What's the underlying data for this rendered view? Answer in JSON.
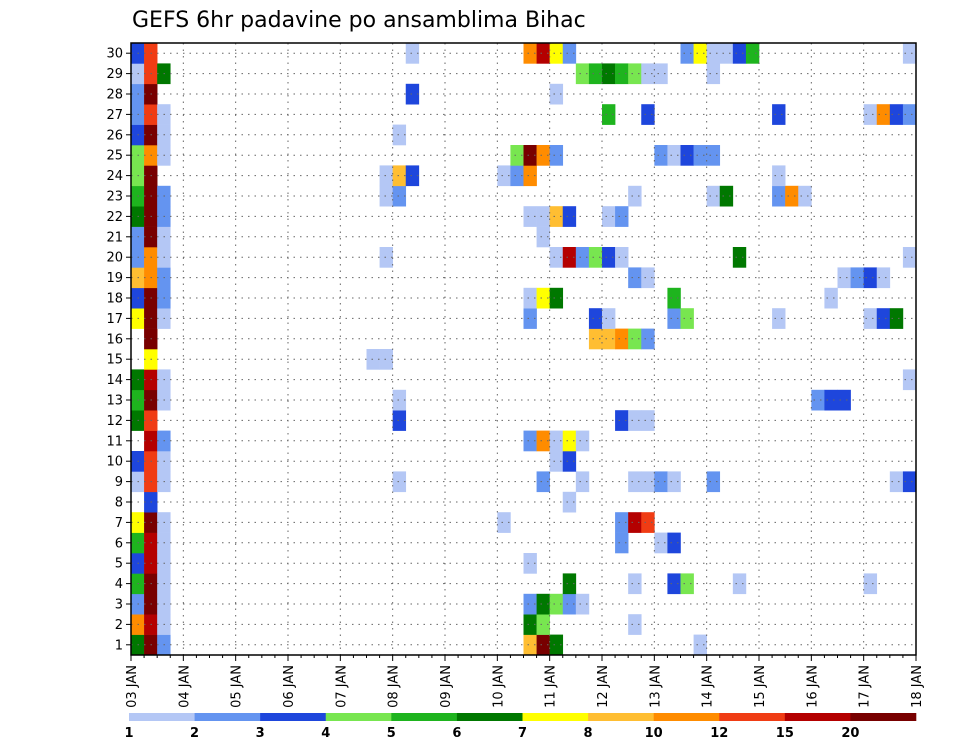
{
  "chart_data": {
    "type": "heatmap",
    "title": "GEFS 6hr padavine po ansamblima Bihac",
    "x_tick_labels": [
      "03 JAN",
      "04 JAN",
      "05 JAN",
      "06 JAN",
      "07 JAN",
      "08 JAN",
      "09 JAN",
      "10 JAN",
      "11 JAN",
      "12 JAN",
      "13 JAN",
      "14 JAN",
      "15 JAN",
      "16 JAN",
      "17 JAN",
      "18 JAN"
    ],
    "y_tick_labels": [
      "1",
      "2",
      "3",
      "4",
      "5",
      "6",
      "7",
      "8",
      "9",
      "10",
      "11",
      "12",
      "13",
      "14",
      "15",
      "16",
      "17",
      "18",
      "19",
      "20",
      "21",
      "22",
      "23",
      "24",
      "25",
      "26",
      "27",
      "28",
      "29",
      "30"
    ],
    "x_step": "6 hours per column, 4 columns per day",
    "y_members": 30,
    "grid": "dotted",
    "color_levels": [
      "1",
      "2",
      "3",
      "4",
      "5",
      "6",
      "7",
      "8",
      "10",
      "12",
      "15",
      "20"
    ],
    "colors": [
      "#b4c7f5",
      "#6494f0",
      "#1e46dc",
      "#78e650",
      "#1eb41e",
      "#007800",
      "#ffff00",
      "#ffbe32",
      "#ff8c00",
      "#f03c14",
      "#b40000",
      "#780000"
    ],
    "cells_format": "[member_row_1_to_30, column_index_from_03JAN00Z, color_index]",
    "cells": [
      [
        1,
        0,
        5
      ],
      [
        1,
        1,
        11
      ],
      [
        1,
        2,
        1
      ],
      [
        1,
        30,
        7
      ],
      [
        1,
        31,
        11
      ],
      [
        1,
        32,
        5
      ],
      [
        1,
        43,
        0
      ],
      [
        2,
        0,
        8
      ],
      [
        2,
        1,
        10
      ],
      [
        2,
        2,
        0
      ],
      [
        2,
        30,
        5
      ],
      [
        2,
        31,
        3
      ],
      [
        2,
        38,
        0
      ],
      [
        3,
        0,
        1
      ],
      [
        3,
        1,
        11
      ],
      [
        3,
        2,
        0
      ],
      [
        3,
        30,
        1
      ],
      [
        3,
        31,
        5
      ],
      [
        3,
        32,
        3
      ],
      [
        3,
        33,
        1
      ],
      [
        3,
        34,
        0
      ],
      [
        4,
        0,
        4
      ],
      [
        4,
        1,
        11
      ],
      [
        4,
        2,
        0
      ],
      [
        4,
        33,
        5
      ],
      [
        4,
        38,
        0
      ],
      [
        4,
        41,
        2
      ],
      [
        4,
        42,
        3
      ],
      [
        4,
        46,
        0
      ],
      [
        4,
        56,
        0
      ],
      [
        5,
        0,
        2
      ],
      [
        5,
        1,
        10
      ],
      [
        5,
        2,
        0
      ],
      [
        5,
        30,
        0
      ],
      [
        6,
        0,
        4
      ],
      [
        6,
        1,
        10
      ],
      [
        6,
        2,
        0
      ],
      [
        6,
        37,
        1
      ],
      [
        6,
        40,
        0
      ],
      [
        6,
        41,
        2
      ],
      [
        7,
        0,
        6
      ],
      [
        7,
        1,
        11
      ],
      [
        7,
        2,
        0
      ],
      [
        7,
        28,
        0
      ],
      [
        7,
        37,
        1
      ],
      [
        7,
        38,
        10
      ],
      [
        7,
        39,
        9
      ],
      [
        8,
        1,
        2
      ],
      [
        8,
        33,
        0
      ],
      [
        9,
        0,
        0
      ],
      [
        9,
        1,
        9
      ],
      [
        9,
        2,
        0
      ],
      [
        9,
        20,
        0
      ],
      [
        9,
        31,
        1
      ],
      [
        9,
        34,
        0
      ],
      [
        9,
        38,
        0
      ],
      [
        9,
        39,
        0
      ],
      [
        9,
        40,
        1
      ],
      [
        9,
        41,
        0
      ],
      [
        9,
        44,
        1
      ],
      [
        9,
        58,
        0
      ],
      [
        9,
        59,
        2
      ],
      [
        10,
        0,
        2
      ],
      [
        10,
        1,
        9
      ],
      [
        10,
        2,
        0
      ],
      [
        10,
        32,
        0
      ],
      [
        10,
        33,
        2
      ],
      [
        11,
        1,
        10
      ],
      [
        11,
        2,
        1
      ],
      [
        11,
        30,
        1
      ],
      [
        11,
        31,
        8
      ],
      [
        11,
        32,
        0
      ],
      [
        11,
        33,
        6
      ],
      [
        11,
        34,
        0
      ],
      [
        12,
        0,
        5
      ],
      [
        12,
        1,
        9
      ],
      [
        12,
        20,
        2
      ],
      [
        12,
        37,
        2
      ],
      [
        12,
        38,
        0
      ],
      [
        12,
        39,
        0
      ],
      [
        13,
        0,
        4
      ],
      [
        13,
        1,
        11
      ],
      [
        13,
        2,
        0
      ],
      [
        13,
        20,
        0
      ],
      [
        13,
        52,
        1
      ],
      [
        13,
        53,
        2
      ],
      [
        13,
        54,
        2
      ],
      [
        14,
        0,
        5
      ],
      [
        14,
        1,
        10
      ],
      [
        14,
        2,
        0
      ],
      [
        14,
        59,
        0
      ],
      [
        15,
        1,
        6
      ],
      [
        15,
        18,
        0
      ],
      [
        15,
        19,
        0
      ],
      [
        16,
        1,
        11
      ],
      [
        16,
        35,
        7
      ],
      [
        16,
        36,
        7
      ],
      [
        16,
        37,
        8
      ],
      [
        16,
        38,
        3
      ],
      [
        16,
        39,
        1
      ],
      [
        17,
        0,
        6
      ],
      [
        17,
        1,
        11
      ],
      [
        17,
        2,
        0
      ],
      [
        17,
        30,
        1
      ],
      [
        17,
        35,
        2
      ],
      [
        17,
        36,
        0
      ],
      [
        17,
        41,
        1
      ],
      [
        17,
        42,
        3
      ],
      [
        17,
        49,
        0
      ],
      [
        17,
        56,
        0
      ],
      [
        17,
        57,
        2
      ],
      [
        17,
        58,
        5
      ],
      [
        18,
        0,
        2
      ],
      [
        18,
        1,
        11
      ],
      [
        18,
        2,
        1
      ],
      [
        18,
        30,
        0
      ],
      [
        18,
        31,
        6
      ],
      [
        18,
        32,
        5
      ],
      [
        18,
        41,
        4
      ],
      [
        18,
        53,
        0
      ],
      [
        19,
        0,
        7
      ],
      [
        19,
        1,
        8
      ],
      [
        19,
        2,
        1
      ],
      [
        19,
        38,
        1
      ],
      [
        19,
        39,
        0
      ],
      [
        19,
        54,
        0
      ],
      [
        19,
        55,
        1
      ],
      [
        19,
        56,
        2
      ],
      [
        19,
        57,
        0
      ],
      [
        20,
        0,
        1
      ],
      [
        20,
        1,
        8
      ],
      [
        20,
        2,
        0
      ],
      [
        20,
        19,
        0
      ],
      [
        20,
        32,
        0
      ],
      [
        20,
        33,
        10
      ],
      [
        20,
        34,
        1
      ],
      [
        20,
        35,
        3
      ],
      [
        20,
        36,
        2
      ],
      [
        20,
        37,
        0
      ],
      [
        20,
        46,
        5
      ],
      [
        20,
        59,
        0
      ],
      [
        21,
        0,
        1
      ],
      [
        21,
        1,
        11
      ],
      [
        21,
        2,
        0
      ],
      [
        21,
        31,
        0
      ],
      [
        22,
        0,
        5
      ],
      [
        22,
        1,
        11
      ],
      [
        22,
        2,
        1
      ],
      [
        22,
        30,
        0
      ],
      [
        22,
        31,
        0
      ],
      [
        22,
        32,
        7
      ],
      [
        22,
        33,
        2
      ],
      [
        22,
        36,
        0
      ],
      [
        22,
        37,
        1
      ],
      [
        23,
        0,
        4
      ],
      [
        23,
        1,
        11
      ],
      [
        23,
        2,
        1
      ],
      [
        23,
        19,
        0
      ],
      [
        23,
        20,
        1
      ],
      [
        23,
        38,
        0
      ],
      [
        23,
        44,
        0
      ],
      [
        23,
        45,
        5
      ],
      [
        23,
        49,
        1
      ],
      [
        23,
        50,
        8
      ],
      [
        23,
        51,
        0
      ],
      [
        24,
        0,
        3
      ],
      [
        24,
        1,
        11
      ],
      [
        24,
        19,
        0
      ],
      [
        24,
        20,
        7
      ],
      [
        24,
        21,
        2
      ],
      [
        24,
        28,
        0
      ],
      [
        24,
        29,
        1
      ],
      [
        24,
        30,
        8
      ],
      [
        24,
        49,
        0
      ],
      [
        25,
        0,
        3
      ],
      [
        25,
        1,
        8
      ],
      [
        25,
        2,
        0
      ],
      [
        25,
        29,
        3
      ],
      [
        25,
        30,
        11
      ],
      [
        25,
        31,
        8
      ],
      [
        25,
        32,
        1
      ],
      [
        25,
        40,
        1
      ],
      [
        25,
        41,
        0
      ],
      [
        25,
        42,
        2
      ],
      [
        25,
        43,
        1
      ],
      [
        25,
        44,
        1
      ],
      [
        26,
        0,
        2
      ],
      [
        26,
        1,
        11
      ],
      [
        26,
        2,
        0
      ],
      [
        26,
        20,
        0
      ],
      [
        27,
        0,
        1
      ],
      [
        27,
        1,
        9
      ],
      [
        27,
        2,
        0
      ],
      [
        27,
        36,
        4
      ],
      [
        27,
        39,
        2
      ],
      [
        27,
        49,
        2
      ],
      [
        27,
        56,
        0
      ],
      [
        27,
        57,
        8
      ],
      [
        27,
        58,
        2
      ],
      [
        27,
        59,
        1
      ],
      [
        28,
        0,
        1
      ],
      [
        28,
        1,
        11
      ],
      [
        28,
        21,
        2
      ],
      [
        28,
        32,
        0
      ],
      [
        29,
        0,
        0
      ],
      [
        29,
        1,
        9
      ],
      [
        29,
        2,
        5
      ],
      [
        29,
        34,
        3
      ],
      [
        29,
        35,
        4
      ],
      [
        29,
        36,
        5
      ],
      [
        29,
        37,
        4
      ],
      [
        29,
        38,
        3
      ],
      [
        29,
        39,
        0
      ],
      [
        29,
        40,
        0
      ],
      [
        29,
        44,
        0
      ],
      [
        30,
        0,
        2
      ],
      [
        30,
        1,
        9
      ],
      [
        30,
        21,
        0
      ],
      [
        30,
        30,
        8
      ],
      [
        30,
        31,
        10
      ],
      [
        30,
        32,
        6
      ],
      [
        30,
        33,
        1
      ],
      [
        30,
        42,
        1
      ],
      [
        30,
        43,
        6
      ],
      [
        30,
        44,
        0
      ],
      [
        30,
        45,
        0
      ],
      [
        30,
        46,
        2
      ],
      [
        30,
        47,
        4
      ],
      [
        30,
        59,
        0
      ]
    ]
  }
}
